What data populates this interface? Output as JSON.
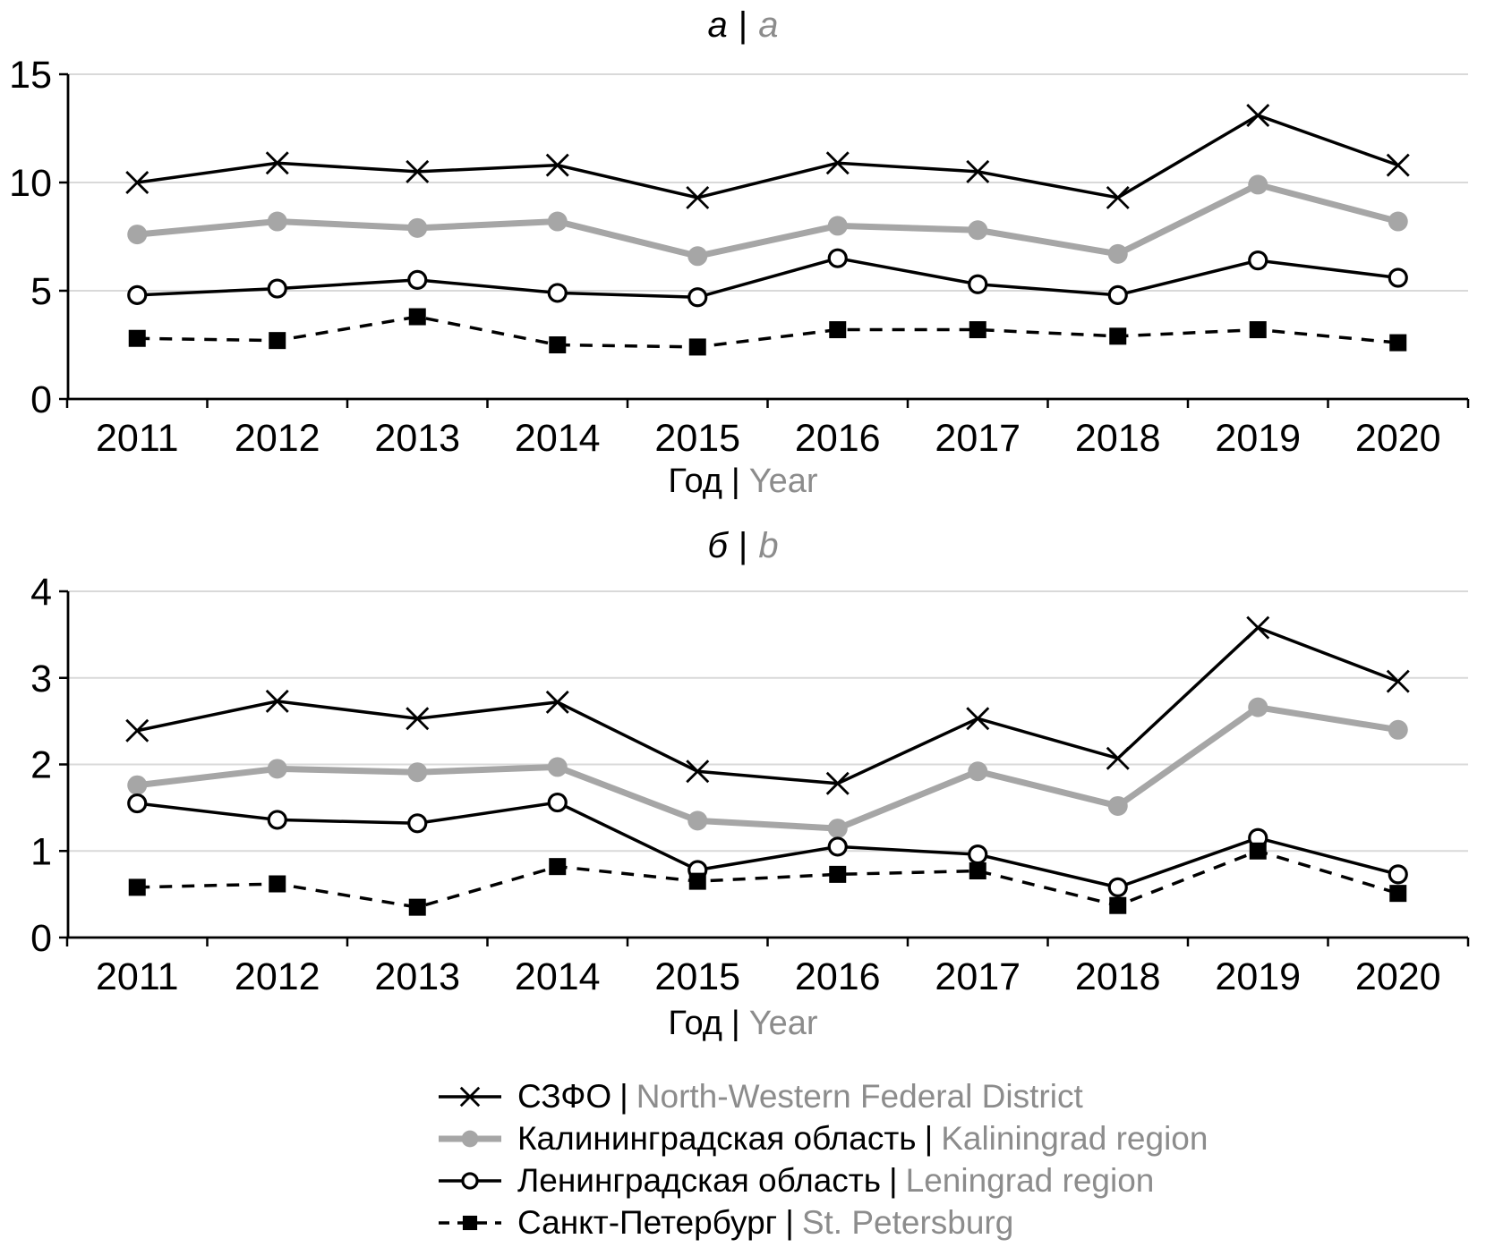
{
  "colors": {
    "black": "#000000",
    "series_gray": "#a6a6a6",
    "gridline": "#d9d9d9",
    "secondary_text": "#8c8c8c"
  },
  "panels": [
    {
      "title_ru": "а",
      "title_sep": "|",
      "title_en": "a",
      "xlabel_ru": "Год",
      "xlabel_sep": "|",
      "xlabel_en": "Year"
    },
    {
      "title_ru": "б",
      "title_sep": "|",
      "title_en": "b",
      "xlabel_ru": "Год",
      "xlabel_sep": "|",
      "xlabel_en": "Year"
    }
  ],
  "chart_data": [
    {
      "type": "line",
      "title": "а | a",
      "xlabel": "Год | Year",
      "x": [
        2011,
        2012,
        2013,
        2014,
        2015,
        2016,
        2017,
        2018,
        2019,
        2020
      ],
      "ylim": [
        0,
        15
      ],
      "yticks": [
        0,
        5,
        10,
        15
      ],
      "grid": true,
      "legend_position": "bottom-shared",
      "series": [
        {
          "key": "szfo",
          "name": "СЗФО | North-Western Federal District",
          "values": [
            10.0,
            10.9,
            10.5,
            10.8,
            9.3,
            10.9,
            10.5,
            9.3,
            13.1,
            10.8
          ]
        },
        {
          "key": "kaliningrad",
          "name": "Калининградская область | Kaliningrad region",
          "values": [
            7.6,
            8.2,
            7.9,
            8.2,
            6.6,
            8.0,
            7.8,
            6.7,
            9.9,
            8.2
          ]
        },
        {
          "key": "leningrad",
          "name": "Ленинградская область | Leningrad region",
          "values": [
            4.8,
            5.1,
            5.5,
            4.9,
            4.7,
            6.5,
            5.3,
            4.8,
            6.4,
            5.6
          ]
        },
        {
          "key": "spb",
          "name": "Санкт-Петербург | St. Petersburg",
          "values": [
            2.8,
            2.7,
            3.8,
            2.5,
            2.4,
            3.2,
            3.2,
            2.9,
            3.2,
            2.6
          ]
        }
      ]
    },
    {
      "type": "line",
      "title": "б | b",
      "xlabel": "Год | Year",
      "x": [
        2011,
        2012,
        2013,
        2014,
        2015,
        2016,
        2017,
        2018,
        2019,
        2020
      ],
      "ylim": [
        0,
        4
      ],
      "yticks": [
        0,
        1,
        2,
        3,
        4
      ],
      "grid": true,
      "legend_position": "bottom-shared",
      "series": [
        {
          "key": "szfo",
          "name": "СЗФО | North-Western Federal District",
          "values": [
            2.39,
            2.73,
            2.53,
            2.72,
            1.92,
            1.78,
            2.53,
            2.07,
            3.58,
            2.96
          ]
        },
        {
          "key": "kaliningrad",
          "name": "Калининградская область | Kaliningrad region",
          "values": [
            1.76,
            1.95,
            1.91,
            1.97,
            1.35,
            1.26,
            1.92,
            1.52,
            2.66,
            2.4
          ]
        },
        {
          "key": "leningrad",
          "name": "Ленинградская область | Leningrad region",
          "values": [
            1.55,
            1.36,
            1.32,
            1.56,
            0.78,
            1.05,
            0.96,
            0.58,
            1.15,
            0.73
          ]
        },
        {
          "key": "spb",
          "name": "Санкт-Петербург | St. Petersburg",
          "values": [
            0.58,
            0.62,
            0.35,
            0.82,
            0.65,
            0.73,
            0.77,
            0.37,
            1.0,
            0.51
          ]
        }
      ]
    }
  ],
  "legend": {
    "items": [
      {
        "key": "szfo",
        "marker_icon": "x-cross-marker",
        "line": "solid-black",
        "label_ru": "СЗФО",
        "sep": "|",
        "label_en": "North-Western Federal District"
      },
      {
        "key": "kaliningrad",
        "marker_icon": "filled-circle-marker",
        "line": "solid-gray-thick",
        "label_ru": "Калининградская область",
        "sep": "|",
        "label_en": "Kaliningrad region"
      },
      {
        "key": "leningrad",
        "marker_icon": "open-circle-marker",
        "line": "solid-black",
        "label_ru": "Ленинградская область",
        "sep": "|",
        "label_en": "Leningrad region"
      },
      {
        "key": "spb",
        "marker_icon": "filled-square-marker",
        "line": "dashed-black",
        "label_ru": "Санкт-Петербург",
        "sep": "|",
        "label_en": "St. Petersburg"
      }
    ]
  }
}
